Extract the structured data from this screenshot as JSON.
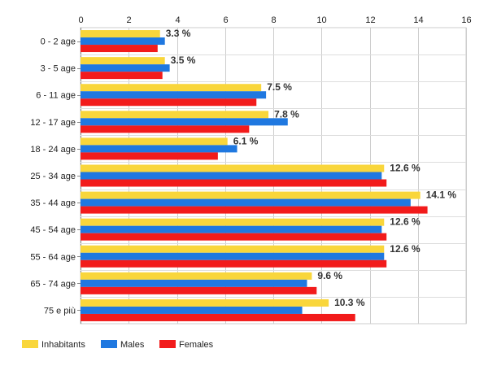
{
  "chart_data": {
    "type": "bar",
    "orientation": "horizontal",
    "categories": [
      "0 - 2 age",
      "3 - 5 age",
      "6 - 11 age",
      "12 - 17 age",
      "18 - 24 age",
      "25 - 34 age",
      "35 - 44 age",
      "45 - 54 age",
      "55 - 64 age",
      "65 - 74 age",
      "75 e più"
    ],
    "series": [
      {
        "name": "Inhabitants",
        "color": "#f9d63b",
        "values": [
          3.3,
          3.5,
          7.5,
          7.8,
          6.1,
          12.6,
          14.1,
          12.6,
          12.6,
          9.6,
          10.3
        ]
      },
      {
        "name": "Males",
        "color": "#1f78e0",
        "values": [
          3.5,
          3.7,
          7.7,
          8.6,
          6.5,
          12.5,
          13.7,
          12.5,
          12.6,
          9.4,
          9.2
        ]
      },
      {
        "name": "Females",
        "color": "#f21b1b",
        "values": [
          3.2,
          3.4,
          7.3,
          7.0,
          5.7,
          12.7,
          14.4,
          12.7,
          12.7,
          9.8,
          11.4
        ]
      }
    ],
    "data_labels": [
      "3.3 %",
      "3.5 %",
      "7.5 %",
      "7.8 %",
      "6.1 %",
      "12.6 %",
      "14.1 %",
      "12.6 %",
      "12.6 %",
      "9.6 %",
      "10.3 %"
    ],
    "xlim": [
      0,
      16
    ],
    "x_ticks": [
      0,
      2,
      4,
      6,
      8,
      10,
      12,
      14,
      16
    ],
    "x_tick_labels": [
      "0",
      "2",
      "4",
      "6",
      "8",
      "10",
      "12",
      "14",
      "16"
    ],
    "x_axis_position": "top",
    "grid": true,
    "legend_position": "bottom-left",
    "title": "",
    "xlabel": "",
    "ylabel": ""
  }
}
